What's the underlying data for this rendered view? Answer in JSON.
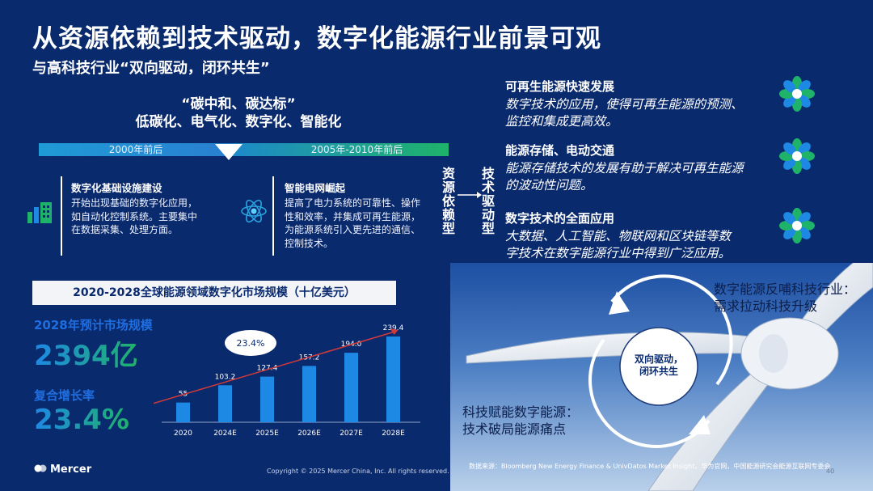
{
  "header": {
    "title": "从资源依赖到技术驱动，数字化能源行业前景可观",
    "subtitle": "与高科技行业“双向驱动，闭环共生”"
  },
  "carbon": {
    "line1": "“碳中和、碳达标”",
    "line2": "低碳化、电气化、数字化、智能化"
  },
  "timeline": {
    "left_label": "2000年前后",
    "right_label": "2005年-2010年前后"
  },
  "cards": [
    {
      "title": "数字化基础设施建设",
      "lines": [
        "开始出现基础的数字化应用，",
        "如自动化控制系统。主要集中",
        "在数据采集、处理方面。"
      ],
      "icon": "building-chart-icon"
    },
    {
      "title": "智能电网崛起",
      "lines": [
        "提高了电力系统的可靠性、操作",
        "性和效率，并集成可再生能源，",
        "为能源系统引入更先进的通信、",
        "控制技术。"
      ],
      "icon": "atom-network-icon"
    }
  ],
  "vertical": {
    "left": [
      "资",
      "源",
      "依",
      "赖",
      "型"
    ],
    "right": [
      "技",
      "术",
      "驱",
      "动",
      "型"
    ]
  },
  "right_points": [
    {
      "title": "可再生能源快速发展",
      "lines": [
        "数字技术的应用，使得可再生能源的预测、",
        "监控和集成更高效。"
      ]
    },
    {
      "title": "能源存储、电动交通",
      "lines": [
        "能源存储技术的发展有助于解决可再生能源",
        "的波动性问题。"
      ]
    },
    {
      "title": "数字技术的全面应用",
      "lines": [
        "大数据、人工智能、物联网和区块链等数",
        "字技术在数字能源行业中得到广泛应用。"
      ]
    }
  ],
  "chart_section": {
    "header": "2020-2028全球能源领域数字化市场规模（十亿美元）",
    "stat1_label": "2028年预计市场规模",
    "stat1_value": "2394亿",
    "stat2_label": "复合增长率",
    "stat2_value": "23.4%"
  },
  "chart_data": {
    "type": "bar",
    "categories": [
      "2020",
      "2024E",
      "2025E",
      "2026E",
      "2027E",
      "2028E"
    ],
    "values": [
      55,
      103.2,
      127.4,
      157.2,
      194.0,
      239.4
    ],
    "value_labels": [
      "55",
      "103.2",
      "127.4",
      "157.2",
      "194.0",
      "239.4"
    ],
    "annotation": "23.4%",
    "bar_color": "#1e88e5",
    "trend_color": "#d23a3a"
  },
  "panel": {
    "top_lines": [
      "数字能源反哺科技行业：",
      "需求拉动科技升级"
    ],
    "bottom_lines": [
      "科技赋能数字能源：",
      "技术破局能源痛点"
    ],
    "center_lines": [
      "双向驱动，",
      "闭环共生"
    ]
  },
  "footer": {
    "logo": "Mercer",
    "copyright": "Copyright © 2025 Mercer China, Inc. All rights reserved.",
    "source": "数据来源：Bloomberg New Energy Finance & UnivDatos Market Insight，华为官网，中国能源研究会能源互联网专委会",
    "page": "40"
  },
  "colors": {
    "background": "#0a2a6e",
    "accent_blue": "#1f6ee0",
    "accent_green": "#1fb36a"
  }
}
